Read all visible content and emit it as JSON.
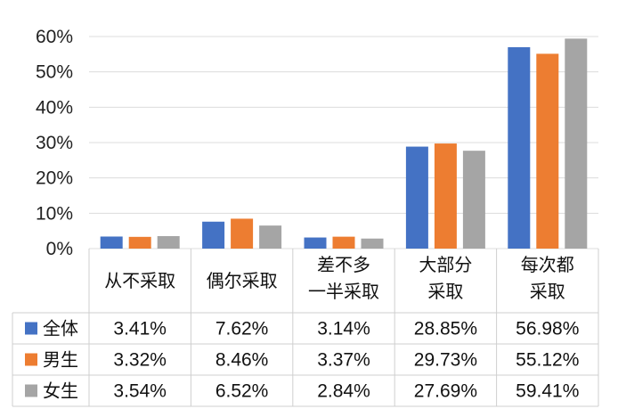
{
  "chart_data": {
    "type": "bar",
    "categories": [
      [
        "从不采取"
      ],
      [
        "偶尔采取"
      ],
      [
        "差不多",
        "一半采取"
      ],
      [
        "大部分",
        "采取"
      ],
      [
        "每次都",
        "采取"
      ]
    ],
    "yticks": [
      "0%",
      "10%",
      "20%",
      "30%",
      "40%",
      "50%",
      "60%"
    ],
    "ylim": [
      0,
      60
    ],
    "grid": true,
    "series": [
      {
        "name": "全体",
        "color": "#4472c4",
        "values": [
          3.41,
          7.62,
          3.14,
          28.85,
          56.98
        ],
        "labels": [
          "3.41%",
          "7.62%",
          "3.14%",
          "28.85%",
          "56.98%"
        ]
      },
      {
        "name": "男生",
        "color": "#ed7d31",
        "values": [
          3.32,
          8.46,
          3.37,
          29.73,
          55.12
        ],
        "labels": [
          "3.32%",
          "8.46%",
          "3.37%",
          "29.73%",
          "55.12%"
        ]
      },
      {
        "name": "女生",
        "color": "#a5a5a5",
        "values": [
          3.54,
          6.52,
          2.84,
          27.69,
          59.41
        ],
        "labels": [
          "3.54%",
          "6.52%",
          "2.84%",
          "27.69%",
          "59.41%"
        ]
      }
    ]
  }
}
